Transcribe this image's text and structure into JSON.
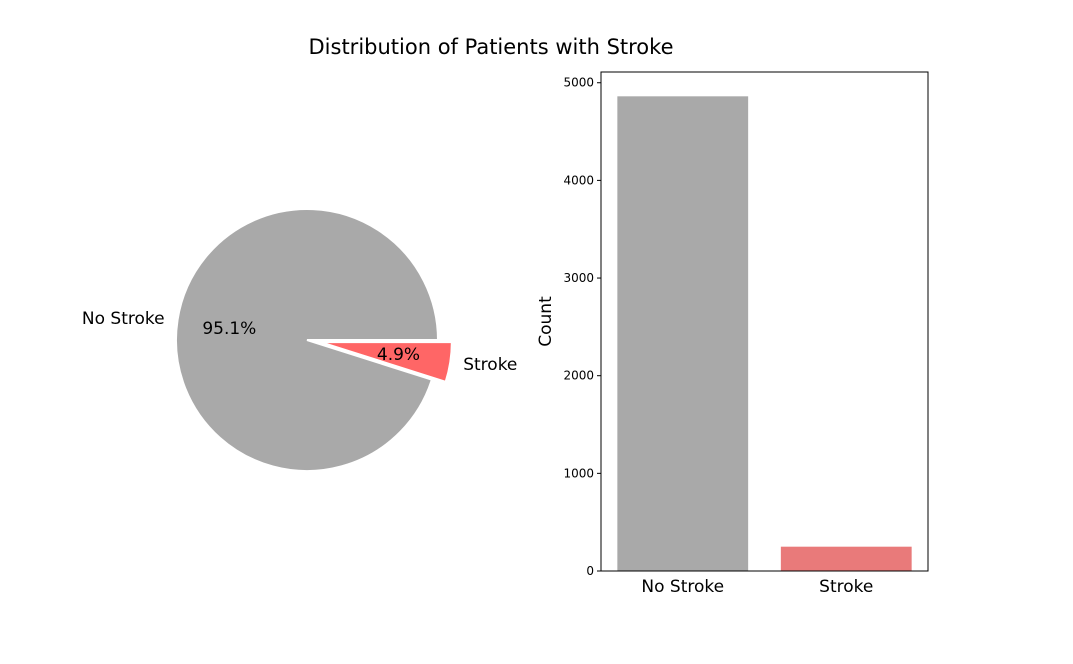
{
  "title": "Distribution of Patients with Stroke",
  "colors": {
    "no_stroke_pie": "#a9a9a9",
    "stroke_pie": "#ff6666",
    "no_stroke_bar": "#a9a9a9",
    "stroke_bar": "#e97a7a"
  },
  "chart_data": [
    {
      "type": "pie",
      "slices": [
        {
          "label": "No Stroke",
          "value": 95.1,
          "pct_label": "95.1%",
          "exploded": false
        },
        {
          "label": "Stroke",
          "value": 4.9,
          "pct_label": "4.9%",
          "exploded": true
        }
      ]
    },
    {
      "type": "bar",
      "categories": [
        "No Stroke",
        "Stroke"
      ],
      "values": [
        4861,
        249
      ],
      "ylabel": "Count",
      "xlabel": "",
      "ylim": [
        0,
        5110
      ],
      "yticks": [
        "0",
        "1000",
        "2000",
        "3000",
        "4000",
        "5000"
      ]
    }
  ]
}
